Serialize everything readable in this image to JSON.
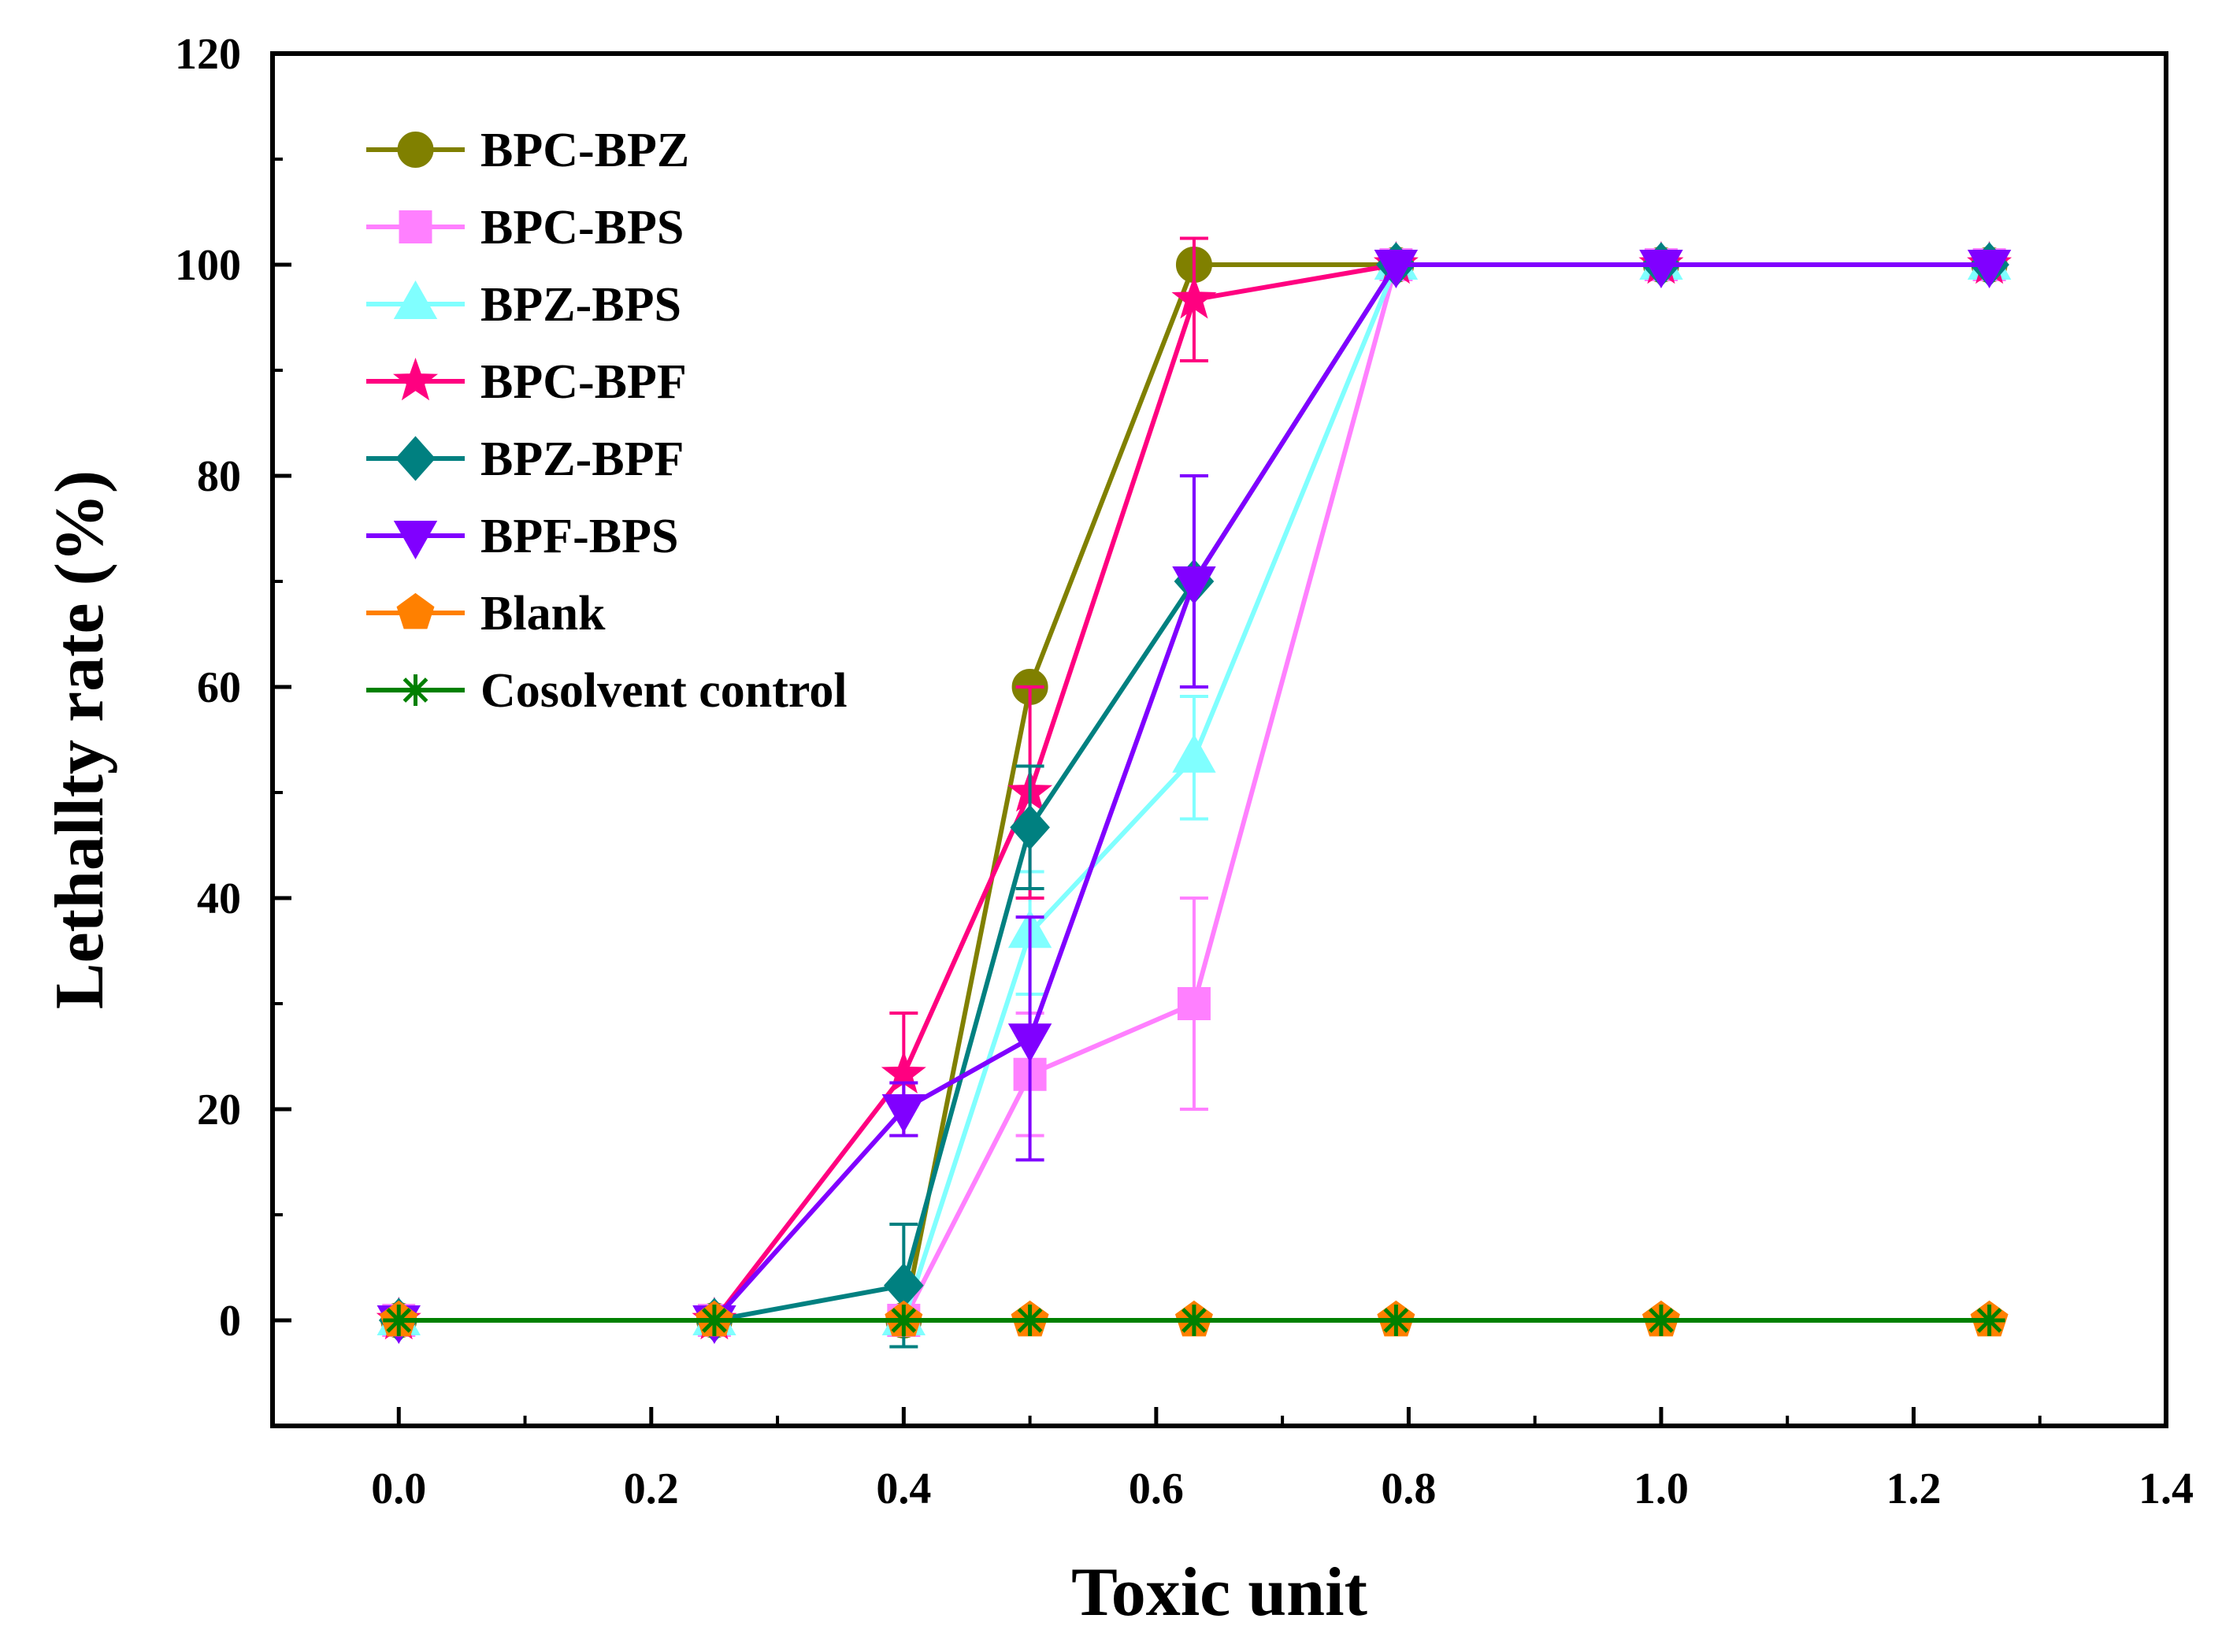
{
  "chart_data": {
    "type": "line",
    "xlabel": "Toxic unit",
    "ylabel": "Lethallty rate (%)",
    "xlim": [
      -0.1,
      1.4
    ],
    "ylim": [
      -10,
      120
    ],
    "xticks": [
      0.0,
      0.2,
      0.4,
      0.6,
      0.8,
      1.0,
      1.2,
      1.4
    ],
    "xtick_labels": [
      "0.0",
      "0.2",
      "0.4",
      "0.6",
      "0.8",
      "1.0",
      "1.2",
      "1.4"
    ],
    "yticks": [
      0,
      20,
      40,
      60,
      80,
      100,
      120
    ],
    "ytick_labels": [
      "0",
      "20",
      "40",
      "60",
      "80",
      "100",
      "120"
    ],
    "x": [
      0.0,
      0.25,
      0.4,
      0.5,
      0.63,
      0.79,
      1.0,
      1.26
    ],
    "legend_position": "top-left",
    "grid": false,
    "series": [
      {
        "name": "BPC-BPZ",
        "color": "#808000",
        "marker": "circle",
        "values": [
          0,
          0,
          0,
          60,
          100,
          100,
          100,
          100
        ],
        "errors": [
          0,
          0,
          0,
          0,
          0,
          0,
          0,
          0
        ]
      },
      {
        "name": "BPC-BPS",
        "color": "#ff80ff",
        "marker": "square",
        "values": [
          0,
          0,
          0,
          23.3,
          30,
          100,
          100,
          100
        ],
        "errors": [
          0,
          0,
          0,
          5.8,
          10,
          0,
          0,
          0
        ]
      },
      {
        "name": "BPZ-BPS",
        "color": "#80ffff",
        "marker": "triangle-up",
        "values": [
          0,
          0,
          0,
          36.7,
          53.3,
          100,
          100,
          100
        ],
        "errors": [
          0,
          0,
          0,
          5.8,
          5.8,
          0,
          0,
          0
        ]
      },
      {
        "name": "BPC-BPF",
        "color": "#ff0080",
        "marker": "star",
        "values": [
          0,
          0,
          23.3,
          50,
          96.7,
          100,
          100,
          100
        ],
        "errors": [
          0,
          0,
          5.8,
          10,
          5.8,
          0,
          0,
          0
        ]
      },
      {
        "name": "BPZ-BPF",
        "color": "#008080",
        "marker": "diamond",
        "values": [
          0,
          0,
          3.3,
          46.7,
          70,
          100,
          100,
          100
        ],
        "errors": [
          0,
          0,
          5.8,
          5.8,
          10,
          0,
          0,
          0
        ]
      },
      {
        "name": "BPF-BPS",
        "color": "#8000ff",
        "marker": "triangle-down",
        "values": [
          0,
          0,
          20,
          26.7,
          70,
          100,
          100,
          100
        ],
        "errors": [
          0,
          0,
          2.5,
          11.5,
          10,
          0,
          0,
          0
        ]
      },
      {
        "name": "Blank",
        "color": "#ff8000",
        "marker": "pentagon",
        "values": [
          0,
          0,
          0,
          0,
          0,
          0,
          0,
          0
        ],
        "errors": [
          0,
          0,
          0,
          0,
          0,
          0,
          0,
          0
        ]
      },
      {
        "name": "Cosolvent control",
        "color": "#008000",
        "marker": "asterisk",
        "values": [
          0,
          0,
          0,
          0,
          0,
          0,
          0,
          0
        ],
        "errors": [
          0,
          0,
          0,
          0,
          0,
          0,
          0,
          0
        ]
      }
    ]
  }
}
